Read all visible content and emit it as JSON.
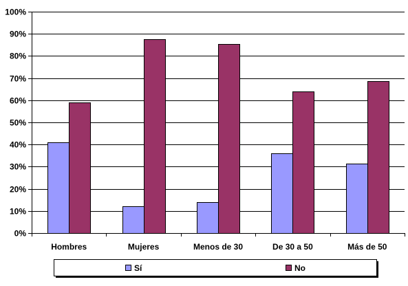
{
  "chart_data": {
    "type": "bar",
    "categories": [
      "Hombres",
      "Mujeres",
      "Menos de 30",
      "De 30 a 50",
      "Más de 50"
    ],
    "series": [
      {
        "name": "Sí",
        "color": "#9999ff",
        "values": [
          41,
          12,
          14,
          36,
          31.5
        ]
      },
      {
        "name": "No",
        "color": "#993366",
        "values": [
          59,
          87.5,
          85.5,
          64,
          68.5
        ]
      }
    ],
    "ylim": [
      0,
      100
    ],
    "yticks": [
      "0%",
      "10%",
      "20%",
      "30%",
      "40%",
      "50%",
      "60%",
      "70%",
      "80%",
      "90%",
      "100%"
    ],
    "grid": true,
    "legend_position": "bottom"
  }
}
